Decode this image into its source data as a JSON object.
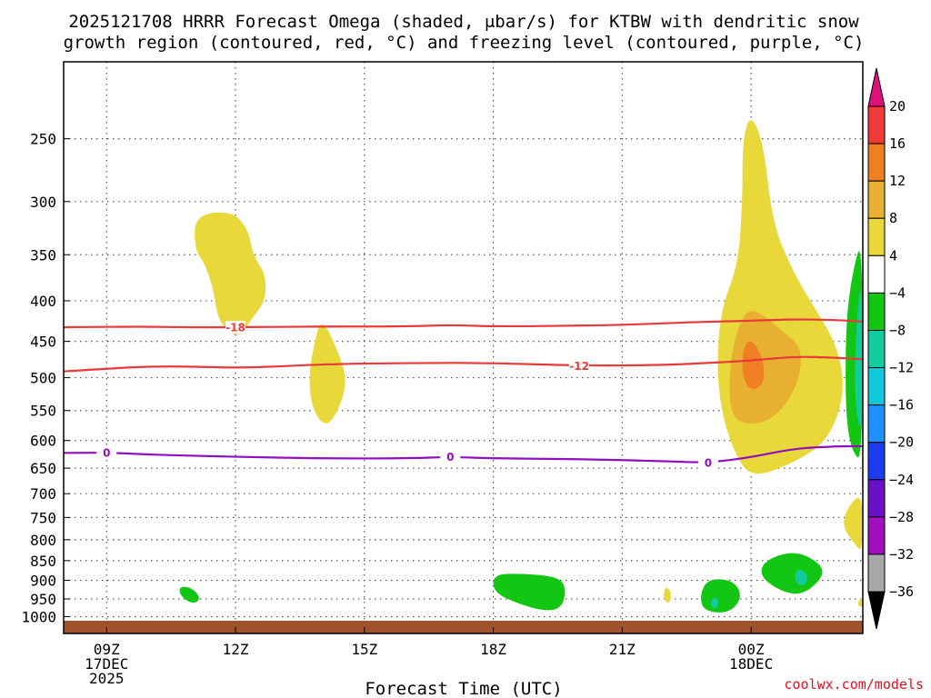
{
  "chart_data": {
    "type": "time-height-contour",
    "title": {
      "line1": "2025121708 HRRR Forecast Omega (shaded, μbar/s) for KTBW with dendritic snow",
      "line2": "growth region (contoured, red, °C) and freezing level (contoured, purple, °C)"
    },
    "xlabel": "Forecast Time (UTC)",
    "y_scale": "log-pressure (hPa), inverted",
    "y_range": [
      200,
      1050
    ],
    "x_range_hours": [
      8,
      26.6
    ],
    "y_ticks": [
      "250",
      "300",
      "350",
      "400",
      "450",
      "500",
      "550",
      "600",
      "650",
      "700",
      "750",
      "800",
      "850",
      "900",
      "950",
      "1000"
    ],
    "x_ticks": [
      {
        "hour": 9,
        "line1": "09Z",
        "line2": "17DEC",
        "line3": "2025"
      },
      {
        "hour": 12,
        "line1": "12Z",
        "line2": "",
        "line3": ""
      },
      {
        "hour": 15,
        "line1": "15Z",
        "line2": "",
        "line3": ""
      },
      {
        "hour": 18,
        "line1": "18Z",
        "line2": "",
        "line3": ""
      },
      {
        "hour": 21,
        "line1": "21Z",
        "line2": "",
        "line3": ""
      },
      {
        "hour": 24,
        "line1": "00Z",
        "line2": "18DEC",
        "line3": ""
      }
    ],
    "grid": true,
    "colorbar": {
      "labels": [
        "20",
        "16",
        "12",
        "8",
        "4",
        "−4",
        "−8",
        "−12",
        "−16",
        "−20",
        "−24",
        "−28",
        "−32",
        "−36"
      ],
      "colors": [
        "#f03a3a",
        "#f07e22",
        "#e8b030",
        "#e8d83a",
        "#ffffff",
        "#14c614",
        "#12cca0",
        "#10c8d8",
        "#1e90ff",
        "#1c3cf0",
        "#6a10c8",
        "#a010c0",
        "#a8a8a8"
      ],
      "top_arrow_color": "#e0107a",
      "bottom_arrow_color": "#000000"
    },
    "series": [
      {
        "name": "-18",
        "kind": "dendritic snow growth isotherm",
        "color": "#e83a3a",
        "points": [
          [
            8.0,
            432
          ],
          [
            9.5,
            431
          ],
          [
            11.0,
            432
          ],
          [
            12.0,
            432
          ],
          [
            14.0,
            431
          ],
          [
            16.0,
            431
          ],
          [
            17.0,
            429
          ],
          [
            18.0,
            431
          ],
          [
            20.0,
            430
          ],
          [
            21.0,
            429
          ],
          [
            22.0,
            427
          ],
          [
            23.0,
            425
          ],
          [
            24.0,
            424
          ],
          [
            25.0,
            422
          ],
          [
            26.0,
            423
          ],
          [
            26.6,
            425
          ]
        ],
        "label_at": [
          12.0,
          432
        ]
      },
      {
        "name": "-12",
        "kind": "dendritic snow growth isotherm",
        "color": "#e83a3a",
        "points": [
          [
            8.0,
            491
          ],
          [
            9.0,
            487
          ],
          [
            10.0,
            484
          ],
          [
            11.0,
            484
          ],
          [
            12.0,
            486
          ],
          [
            13.0,
            484
          ],
          [
            14.0,
            481
          ],
          [
            16.0,
            479
          ],
          [
            18.0,
            479
          ],
          [
            20.0,
            483
          ],
          [
            22.0,
            482
          ],
          [
            23.0,
            479
          ],
          [
            24.0,
            476
          ],
          [
            25.0,
            470
          ],
          [
            26.0,
            472
          ],
          [
            26.6,
            474
          ]
        ],
        "label_at": [
          20.0,
          483
        ]
      },
      {
        "name": "0",
        "kind": "freezing level",
        "color": "#9010c0",
        "points": [
          [
            8.0,
            622
          ],
          [
            9.0,
            621
          ],
          [
            10.0,
            625
          ],
          [
            11.0,
            627
          ],
          [
            12.0,
            629
          ],
          [
            14.0,
            632
          ],
          [
            16.0,
            632
          ],
          [
            17.0,
            629
          ],
          [
            18.0,
            632
          ],
          [
            20.0,
            633
          ],
          [
            22.0,
            637
          ],
          [
            23.0,
            640
          ],
          [
            24.0,
            630
          ],
          [
            25.0,
            614
          ],
          [
            26.0,
            610
          ],
          [
            26.6,
            610
          ]
        ],
        "labels_at": [
          [
            9.0,
            621
          ],
          [
            17.0,
            629
          ],
          [
            23.0,
            640
          ]
        ]
      }
    ],
    "shaded_regions": [
      {
        "level": "4 to 8",
        "color": "#e8d83a",
        "points": [
          [
            11.05,
            312
          ],
          [
            11.9,
            308
          ],
          [
            12.3,
            325
          ],
          [
            12.4,
            350
          ],
          [
            12.7,
            370
          ],
          [
            12.7,
            400
          ],
          [
            12.4,
            420
          ],
          [
            12.05,
            448
          ],
          [
            11.6,
            425
          ],
          [
            11.5,
            390
          ],
          [
            11.3,
            360
          ],
          [
            11.05,
            345
          ]
        ]
      },
      {
        "level": "4 to 8",
        "color": "#e8d83a",
        "points": [
          [
            14.0,
            418
          ],
          [
            14.4,
            465
          ],
          [
            14.6,
            505
          ],
          [
            14.4,
            550
          ],
          [
            14.1,
            578
          ],
          [
            13.8,
            550
          ],
          [
            13.7,
            505
          ],
          [
            13.8,
            460
          ]
        ]
      },
      {
        "level": "4 to 8",
        "color": "#e8d83a",
        "points": [
          [
            24.0,
            232
          ],
          [
            24.3,
            255
          ],
          [
            24.5,
            320
          ],
          [
            25.0,
            370
          ],
          [
            25.5,
            410
          ],
          [
            26.0,
            455
          ],
          [
            26.2,
            520
          ],
          [
            25.8,
            600
          ],
          [
            25.0,
            640
          ],
          [
            24.0,
            670
          ],
          [
            23.6,
            620
          ],
          [
            23.3,
            550
          ],
          [
            23.2,
            480
          ],
          [
            23.3,
            410
          ],
          [
            23.7,
            360
          ],
          [
            23.8,
            300
          ],
          [
            23.8,
            250
          ]
        ]
      },
      {
        "level": "8 to 12",
        "color": "#e8b030",
        "points": [
          [
            24.0,
            405
          ],
          [
            24.8,
            440
          ],
          [
            25.2,
            460
          ],
          [
            25.1,
            510
          ],
          [
            24.6,
            560
          ],
          [
            24.0,
            575
          ],
          [
            23.5,
            560
          ],
          [
            23.5,
            480
          ],
          [
            23.7,
            430
          ]
        ]
      },
      {
        "level": "12 to 16",
        "color": "#f07e22",
        "points": [
          [
            24.0,
            445
          ],
          [
            24.3,
            475
          ],
          [
            24.3,
            510
          ],
          [
            24.0,
            520
          ],
          [
            23.8,
            500
          ],
          [
            23.8,
            460
          ]
        ]
      },
      {
        "level": "4 to 8",
        "color": "#e8d83a",
        "points": [
          [
            26.6,
            700
          ],
          [
            26.3,
            720
          ],
          [
            26.1,
            765
          ],
          [
            26.4,
            810
          ],
          [
            26.6,
            830
          ]
        ]
      },
      {
        "level": "4 to 8",
        "color": "#e8d83a",
        "points": [
          [
            22.0,
            915
          ],
          [
            22.15,
            930
          ],
          [
            22.1,
            965
          ],
          [
            21.95,
            950
          ]
        ]
      },
      {
        "level": "4 to 8",
        "color": "#e8d83a",
        "points": [
          [
            26.6,
            940
          ],
          [
            26.45,
            965
          ],
          [
            26.6,
            975
          ]
        ]
      },
      {
        "level": "-4 to -8",
        "color": "#14c614",
        "points": [
          [
            10.7,
            915
          ],
          [
            11.0,
            920
          ],
          [
            11.2,
            950
          ],
          [
            11.0,
            965
          ],
          [
            10.7,
            940
          ]
        ]
      },
      {
        "level": "-4 to -8",
        "color": "#14c614",
        "points": [
          [
            18.0,
            885
          ],
          [
            18.6,
            882
          ],
          [
            19.5,
            890
          ],
          [
            19.7,
            920
          ],
          [
            19.6,
            975
          ],
          [
            19.2,
            985
          ],
          [
            18.5,
            960
          ],
          [
            18.0,
            930
          ]
        ]
      },
      {
        "level": "-4 to -8",
        "color": "#14c614",
        "points": [
          [
            23.0,
            895
          ],
          [
            23.6,
            900
          ],
          [
            23.8,
            945
          ],
          [
            23.5,
            990
          ],
          [
            22.9,
            985
          ],
          [
            22.8,
            940
          ]
        ]
      },
      {
        "level": "-8 to -12",
        "color": "#12cca0",
        "points": [
          [
            23.1,
            945
          ],
          [
            23.25,
            950
          ],
          [
            23.2,
            980
          ],
          [
            23.05,
            970
          ]
        ]
      },
      {
        "level": "-4 to -8",
        "color": "#14c614",
        "points": [
          [
            24.3,
            850
          ],
          [
            25.0,
            825
          ],
          [
            25.6,
            855
          ],
          [
            25.7,
            890
          ],
          [
            25.2,
            940
          ],
          [
            24.7,
            930
          ],
          [
            24.2,
            890
          ]
        ]
      },
      {
        "level": "-8 to -12",
        "color": "#12cca0",
        "points": [
          [
            25.1,
            870
          ],
          [
            25.3,
            880
          ],
          [
            25.3,
            910
          ],
          [
            25.1,
            915
          ],
          [
            25.0,
            890
          ]
        ]
      },
      {
        "level": "-4 to -8",
        "color": "#14c614",
        "points": [
          [
            26.6,
            330
          ],
          [
            26.35,
            370
          ],
          [
            26.2,
            430
          ],
          [
            26.2,
            560
          ],
          [
            26.35,
            620
          ],
          [
            26.6,
            640
          ]
        ]
      },
      {
        "level": "-8 to -12",
        "color": "#12cca0",
        "points": [
          [
            26.6,
            370
          ],
          [
            26.45,
            420
          ],
          [
            26.4,
            540
          ],
          [
            26.6,
            600
          ]
        ]
      }
    ],
    "terrain_color": "#a0522d"
  },
  "credit": "coolwx.com/models"
}
